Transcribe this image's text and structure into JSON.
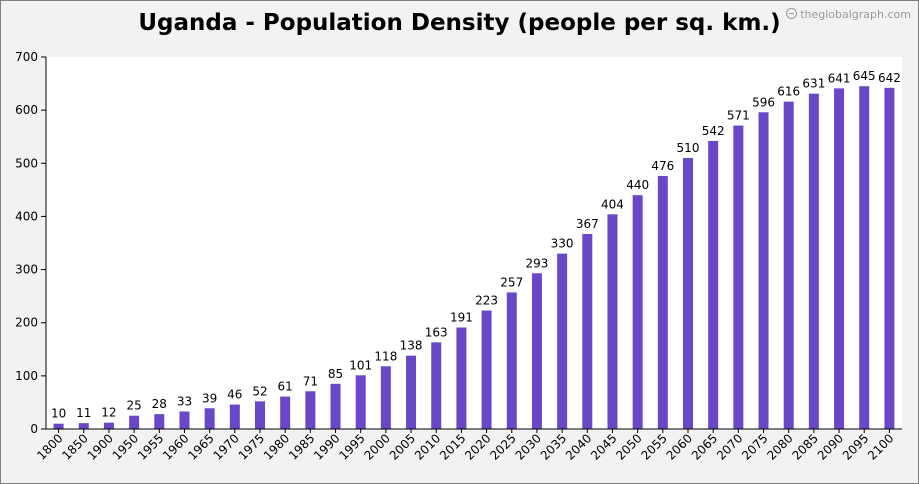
{
  "watermark": "theglobalgraph.com",
  "colors": {
    "bar": "#6a46c8",
    "plot_bg": "#ffffff",
    "page_bg": "#f2f2f2",
    "axis": "#000000"
  },
  "chart_data": {
    "type": "bar",
    "title": "Uganda - Population Density (people per sq. km.)",
    "xlabel": "",
    "ylabel": "",
    "ylim": [
      0,
      700
    ],
    "yticks": [
      0,
      100,
      200,
      300,
      400,
      500,
      600,
      700
    ],
    "grid": false,
    "categories": [
      "1800",
      "1850",
      "1900",
      "1950",
      "1955",
      "1960",
      "1965",
      "1970",
      "1975",
      "1980",
      "1985",
      "1990",
      "1995",
      "2000",
      "2005",
      "2010",
      "2015",
      "2020",
      "2025",
      "2030",
      "2035",
      "2040",
      "2045",
      "2050",
      "2055",
      "2060",
      "2065",
      "2070",
      "2075",
      "2080",
      "2085",
      "2090",
      "2095",
      "2100"
    ],
    "values": [
      10,
      11,
      12,
      25,
      28,
      33,
      39,
      46,
      52,
      61,
      71,
      85,
      101,
      118,
      138,
      163,
      191,
      223,
      257,
      293,
      330,
      367,
      404,
      440,
      476,
      510,
      542,
      571,
      596,
      616,
      631,
      641,
      645,
      642
    ]
  }
}
